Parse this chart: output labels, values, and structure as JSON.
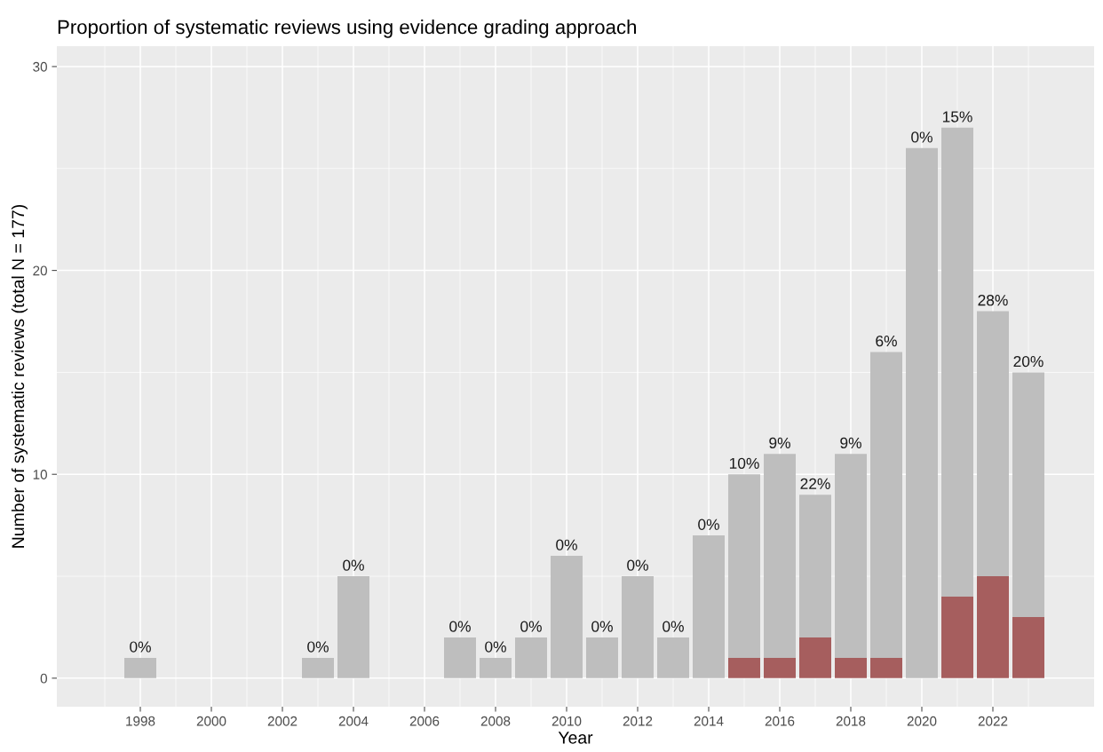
{
  "chart_data": {
    "type": "bar",
    "title": "Proportion of systematic reviews using evidence grading approach",
    "xlabel": "Year",
    "ylabel": "Number of systematic reviews (total N = 177)",
    "x": [
      1998,
      2003,
      2004,
      2007,
      2008,
      2009,
      2010,
      2011,
      2012,
      2013,
      2014,
      2015,
      2016,
      2017,
      2018,
      2019,
      2020,
      2021,
      2022,
      2023
    ],
    "stacked": true,
    "series": [
      {
        "color": "#a65e5e",
        "values": [
          0,
          0,
          0,
          0,
          0,
          0,
          0,
          0,
          0,
          0,
          0,
          1,
          1,
          2,
          1,
          1,
          0,
          4,
          5,
          3
        ]
      },
      {
        "color": "#bebebe",
        "values": [
          1,
          1,
          5,
          2,
          1,
          2,
          6,
          2,
          5,
          2,
          7,
          9,
          10,
          7,
          10,
          15,
          26,
          23,
          13,
          12
        ]
      }
    ],
    "annotations": [
      {
        "text": "0%",
        "x": 1998,
        "y": 1
      },
      {
        "text": "0%",
        "x": 2003,
        "y": 1
      },
      {
        "text": "0%",
        "x": 2004,
        "y": 5
      },
      {
        "text": "0%",
        "x": 2007,
        "y": 2
      },
      {
        "text": "0%",
        "x": 2008,
        "y": 1
      },
      {
        "text": "0%",
        "x": 2009,
        "y": 2
      },
      {
        "text": "0%",
        "x": 2010,
        "y": 6
      },
      {
        "text": "0%",
        "x": 2011,
        "y": 2
      },
      {
        "text": "0%",
        "x": 2012,
        "y": 5
      },
      {
        "text": "0%",
        "x": 2013,
        "y": 2
      },
      {
        "text": "0%",
        "x": 2014,
        "y": 7
      },
      {
        "text": "10%",
        "x": 2015,
        "y": 10
      },
      {
        "text": "9%",
        "x": 2016,
        "y": 11
      },
      {
        "text": "22%",
        "x": 2017,
        "y": 9
      },
      {
        "text": "9%",
        "x": 2018,
        "y": 11
      },
      {
        "text": "6%",
        "x": 2019,
        "y": 16
      },
      {
        "text": "0%",
        "x": 2020,
        "y": 26
      },
      {
        "text": "15%",
        "x": 2021,
        "y": 27
      },
      {
        "text": "28%",
        "x": 2022,
        "y": 18
      },
      {
        "text": "20%",
        "x": 2023,
        "y": 15
      }
    ],
    "xlim": [
      1995.65,
      2024.85
    ],
    "xticks": [
      1998,
      2000,
      2002,
      2004,
      2006,
      2008,
      2010,
      2012,
      2014,
      2016,
      2018,
      2020,
      2022
    ],
    "ylim": [
      -1.4,
      31.0
    ],
    "yticks": [
      0,
      10,
      20,
      30
    ],
    "grid": true,
    "legend": false
  }
}
